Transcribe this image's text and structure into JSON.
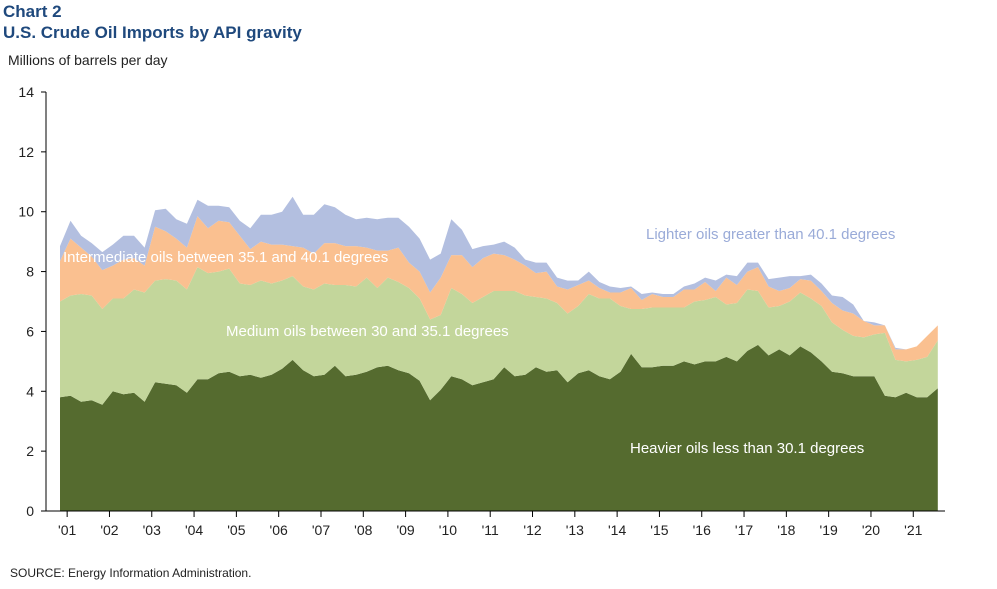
{
  "header": {
    "chart_label": "Chart 2",
    "title": "U.S. Crude Oil Imports by API gravity",
    "y_unit": "Millions of barrels per day"
  },
  "footer": {
    "source": "SOURCE:  Energy Information  Administration."
  },
  "colors": {
    "heavier": "#556b2f",
    "medium": "#c3d69b",
    "intermediate": "#fac090",
    "lighter": "#b3bfe0",
    "title": "#1f497d"
  },
  "chart_data": {
    "type": "area",
    "stacked": true,
    "title": "U.S. Crude Oil Imports by API gravity",
    "ylabel": "Millions of barrels per day",
    "xlabel": "",
    "ylim": [
      0,
      14
    ],
    "yticks": [
      0,
      2,
      4,
      6,
      8,
      10,
      12,
      14
    ],
    "x_start": 2000.83,
    "x_step": 0.25,
    "xlim": [
      2000.5,
      2021.75
    ],
    "year_tick_labels": [
      "'01",
      "'02",
      "'03",
      "'04",
      "'05",
      "'06",
      "'07",
      "'08",
      "'09",
      "'10",
      "'11",
      "'12",
      "'13",
      "'14",
      "'15",
      "'16",
      "'17",
      "'18",
      "'19",
      "'20",
      "'21"
    ],
    "annotations": [
      "Lighter oils greater than  40.1 degrees",
      "Intermediate  oils between 35.1 and 40.1 degrees",
      "Medium oils between 30 and 35.1 degrees",
      "Heavier oils less than  30.1 degrees"
    ],
    "series": [
      {
        "name": "Heavier oils less than  30.1 degrees",
        "values": [
          3.8,
          3.85,
          3.65,
          3.7,
          3.55,
          4.0,
          3.9,
          3.95,
          3.65,
          4.3,
          4.25,
          4.2,
          3.95,
          4.4,
          4.4,
          4.6,
          4.65,
          4.5,
          4.55,
          4.45,
          4.55,
          4.75,
          5.05,
          4.7,
          4.5,
          4.55,
          4.85,
          4.5,
          4.55,
          4.65,
          4.8,
          4.85,
          4.7,
          4.6,
          4.35,
          3.7,
          4.05,
          4.5,
          4.4,
          4.2,
          4.3,
          4.4,
          4.8,
          4.5,
          4.55,
          4.8,
          4.65,
          4.7,
          4.3,
          4.6,
          4.7,
          4.5,
          4.4,
          4.65,
          5.25,
          4.8,
          4.8,
          4.85,
          4.85,
          5.0,
          4.9,
          5.0,
          5.0,
          5.15,
          5.0,
          5.35,
          5.55,
          5.2,
          5.4,
          5.2,
          5.5,
          5.3,
          5.0,
          4.65,
          4.6,
          4.5,
          4.5,
          4.5,
          3.85,
          3.8,
          3.95,
          3.8,
          3.8,
          4.1
        ]
      },
      {
        "name": "Medium oils between 30 and 35.1 degrees",
        "values": [
          3.2,
          3.35,
          3.6,
          3.5,
          3.2,
          3.1,
          3.2,
          3.45,
          3.65,
          3.4,
          3.5,
          3.5,
          3.45,
          3.75,
          3.55,
          3.4,
          3.45,
          3.1,
          3.0,
          3.25,
          3.05,
          2.95,
          2.8,
          2.8,
          2.9,
          3.05,
          2.7,
          3.05,
          2.95,
          3.15,
          2.65,
          2.95,
          2.95,
          2.85,
          2.75,
          2.7,
          2.5,
          2.95,
          2.85,
          2.75,
          2.85,
          2.95,
          2.55,
          2.85,
          2.65,
          2.35,
          2.45,
          2.25,
          2.3,
          2.25,
          2.55,
          2.6,
          2.7,
          2.2,
          1.5,
          1.95,
          2.0,
          1.95,
          1.95,
          1.8,
          2.1,
          2.05,
          2.15,
          1.75,
          1.95,
          2.05,
          1.8,
          1.6,
          1.45,
          1.8,
          1.8,
          1.8,
          1.85,
          1.65,
          1.45,
          1.35,
          1.3,
          1.4,
          2.1,
          1.25,
          1.05,
          1.25,
          1.35,
          1.6
        ]
      },
      {
        "name": "Intermediate  oils between 35.1 and 40.1 degrees",
        "values": [
          1.35,
          1.9,
          1.55,
          1.3,
          1.3,
          1.1,
          1.3,
          1.05,
          0.9,
          1.8,
          1.6,
          1.4,
          1.4,
          1.7,
          1.5,
          1.7,
          1.55,
          1.6,
          1.2,
          1.3,
          1.3,
          1.2,
          1.0,
          1.3,
          1.2,
          1.35,
          1.4,
          1.3,
          1.35,
          1.0,
          1.25,
          0.9,
          1.15,
          0.85,
          0.9,
          0.9,
          1.25,
          1.1,
          1.3,
          1.2,
          1.3,
          1.25,
          1.2,
          1.05,
          1.0,
          0.8,
          0.9,
          0.55,
          0.8,
          0.7,
          0.45,
          0.35,
          0.2,
          0.45,
          0.7,
          0.3,
          0.45,
          0.35,
          0.35,
          0.6,
          0.4,
          0.6,
          0.2,
          0.9,
          0.6,
          0.6,
          0.8,
          0.7,
          0.5,
          0.45,
          0.45,
          0.6,
          0.5,
          0.65,
          0.65,
          0.75,
          0.55,
          0.3,
          0.25,
          0.35,
          0.4,
          0.45,
          0.7,
          0.5
        ]
      },
      {
        "name": "Lighter oils greater than  40.1 degrees",
        "values": [
          0.5,
          0.6,
          0.4,
          0.45,
          0.6,
          0.7,
          0.8,
          0.75,
          0.6,
          0.55,
          0.75,
          0.65,
          0.8,
          0.55,
          0.75,
          0.5,
          0.5,
          0.5,
          0.7,
          0.9,
          1.0,
          1.1,
          1.65,
          1.1,
          1.3,
          1.3,
          1.2,
          1.05,
          0.9,
          1.0,
          1.05,
          1.1,
          1.0,
          1.2,
          1.1,
          1.1,
          0.8,
          1.2,
          0.85,
          0.6,
          0.4,
          0.3,
          0.45,
          0.4,
          0.2,
          0.35,
          0.3,
          0.3,
          0.3,
          0.15,
          0.3,
          0.2,
          0.2,
          0.15,
          0.05,
          0.2,
          0.05,
          0.1,
          0.1,
          0.1,
          0.2,
          0.15,
          0.35,
          0.1,
          0.3,
          0.3,
          0.15,
          0.25,
          0.45,
          0.4,
          0.1,
          0.2,
          0.25,
          0.25,
          0.45,
          0.3,
          0.0,
          0.1,
          0.0,
          0.05,
          0.0,
          0.0,
          0.0,
          0.0
        ]
      }
    ]
  }
}
